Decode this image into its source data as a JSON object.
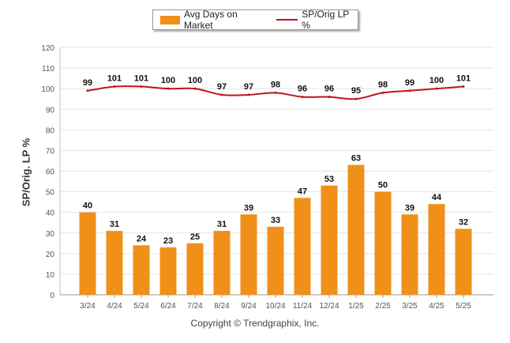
{
  "chart_data": {
    "type": "bar",
    "categories": [
      "3/24",
      "4/24",
      "5/24",
      "6/24",
      "7/24",
      "8/24",
      "9/24",
      "10/24",
      "11/24",
      "12/24",
      "1/25",
      "2/25",
      "3/25",
      "4/25",
      "5/25"
    ],
    "series": [
      {
        "name": "Avg Days on Market",
        "type": "bar",
        "values": [
          40,
          31,
          24,
          23,
          25,
          31,
          39,
          33,
          47,
          53,
          63,
          50,
          39,
          44,
          32
        ]
      },
      {
        "name": "SP/Orig LP %",
        "type": "line",
        "values": [
          99,
          101,
          101,
          100,
          100,
          97,
          97,
          98,
          96,
          96,
          95,
          98,
          99,
          100,
          101
        ]
      }
    ],
    "ylabel": "SP/Orig. LP %",
    "ylim": [
      0,
      120
    ],
    "yticks": [
      0,
      10,
      20,
      30,
      40,
      50,
      60,
      70,
      80,
      90,
      100,
      110,
      120
    ],
    "grid": true,
    "legend_position": "top-center",
    "colors": {
      "bar": "#F09019",
      "line": "#C0141A"
    }
  },
  "legend": {
    "bar_label": "Avg Days on Market",
    "line_label": "SP/Orig LP %"
  },
  "footer": {
    "copyright": "Copyright © Trendgraphix, Inc."
  }
}
